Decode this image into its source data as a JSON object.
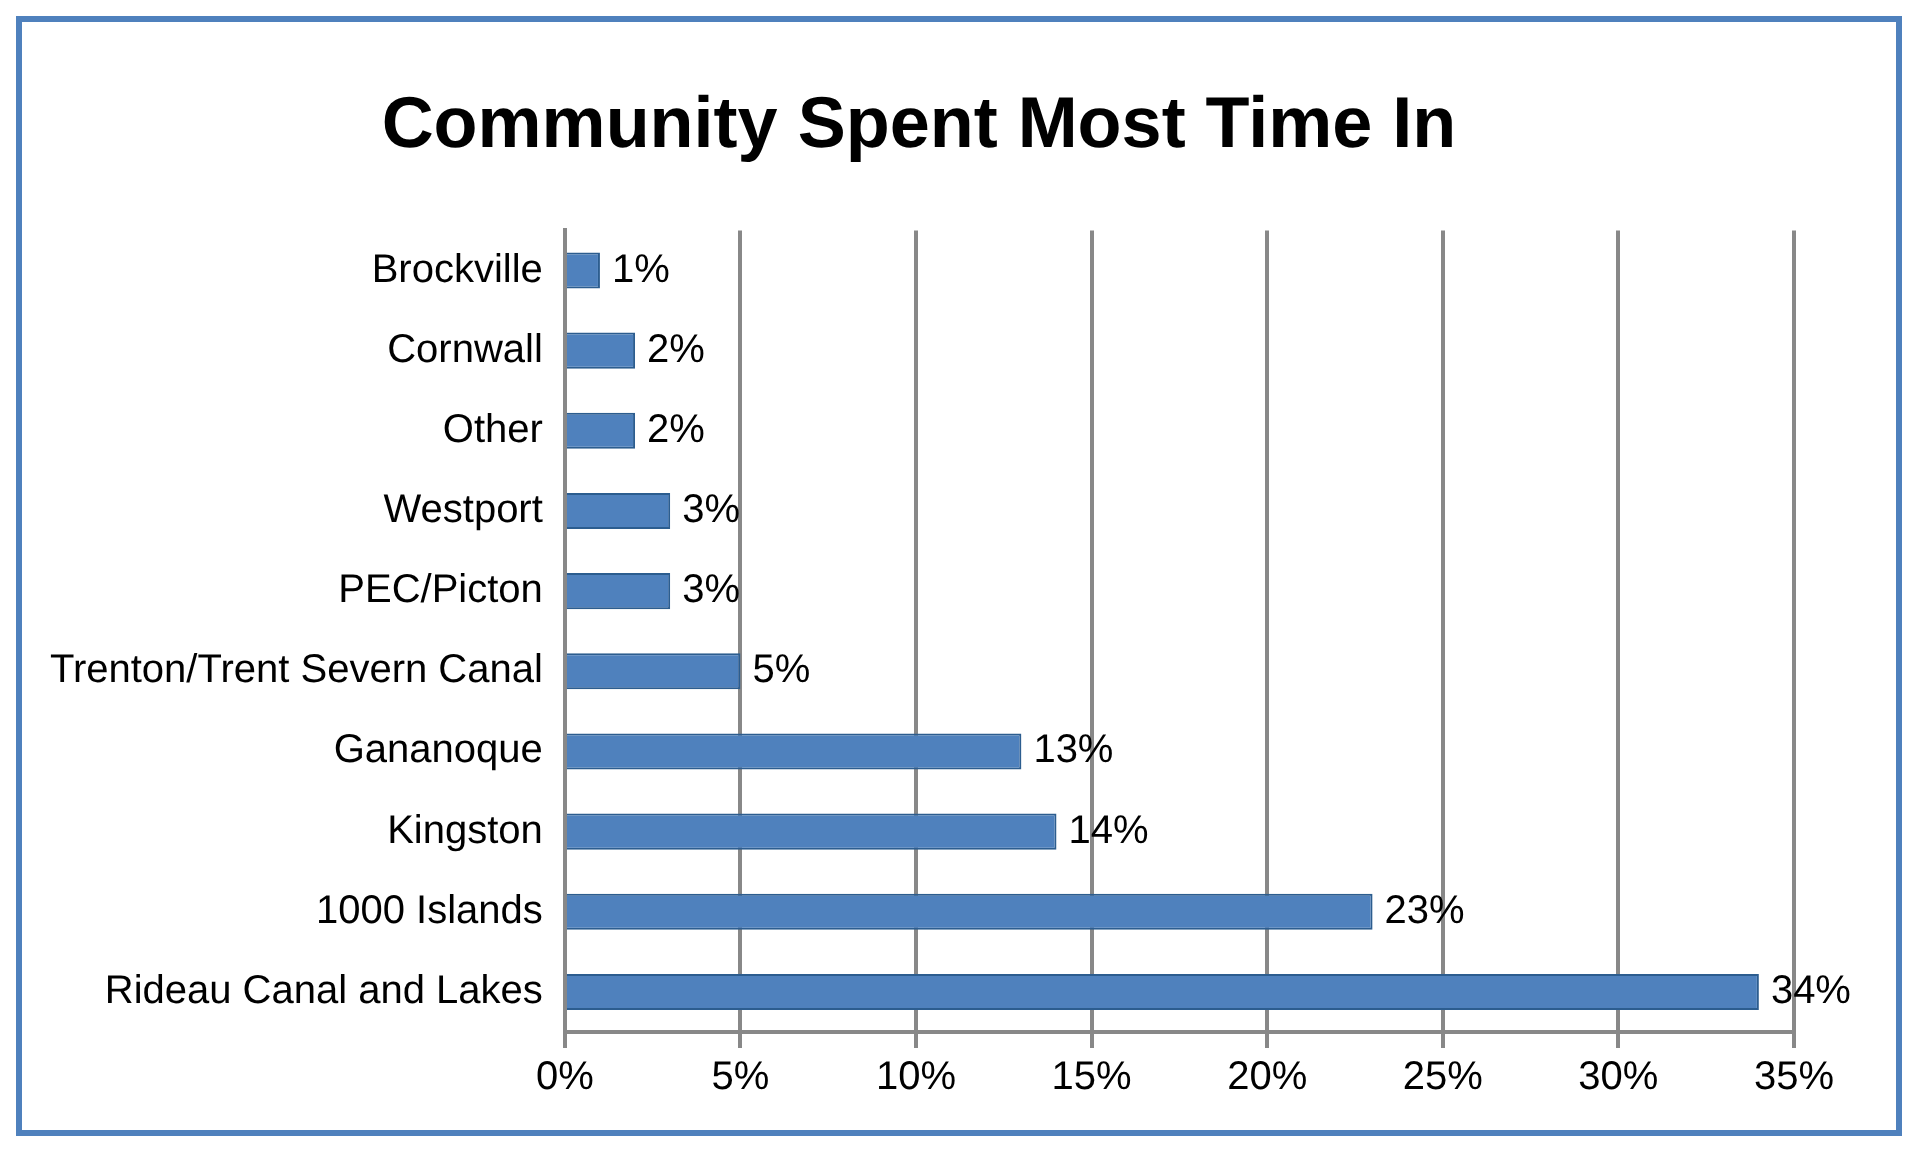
{
  "chart_data": {
    "type": "bar",
    "orientation": "horizontal",
    "title": "Community Spent Most Time In",
    "categories": [
      "Brockville",
      "Cornwall",
      "Other",
      "Westport",
      "PEC/Picton",
      "Trenton/Trent Severn Canal",
      "Gananoque",
      "Kingston",
      "1000 Islands",
      "Rideau Canal and Lakes"
    ],
    "values": [
      1,
      2,
      2,
      3,
      3,
      5,
      13,
      14,
      23,
      34
    ],
    "value_labels": [
      "1%",
      "2%",
      "2%",
      "3%",
      "3%",
      "5%",
      "13%",
      "14%",
      "23%",
      "34%"
    ],
    "color": "#4f81bd",
    "xlim": [
      0,
      35
    ],
    "xticks": [
      {
        "value": 0,
        "label": "0%"
      },
      {
        "value": 5,
        "label": "5%"
      },
      {
        "value": 10,
        "label": "10%"
      },
      {
        "value": 15,
        "label": "15%"
      },
      {
        "value": 20,
        "label": "20%"
      },
      {
        "value": 25,
        "label": "25%"
      },
      {
        "value": 30,
        "label": "30%"
      },
      {
        "value": 35,
        "label": "35%"
      }
    ],
    "grid": "x",
    "legend": false
  }
}
